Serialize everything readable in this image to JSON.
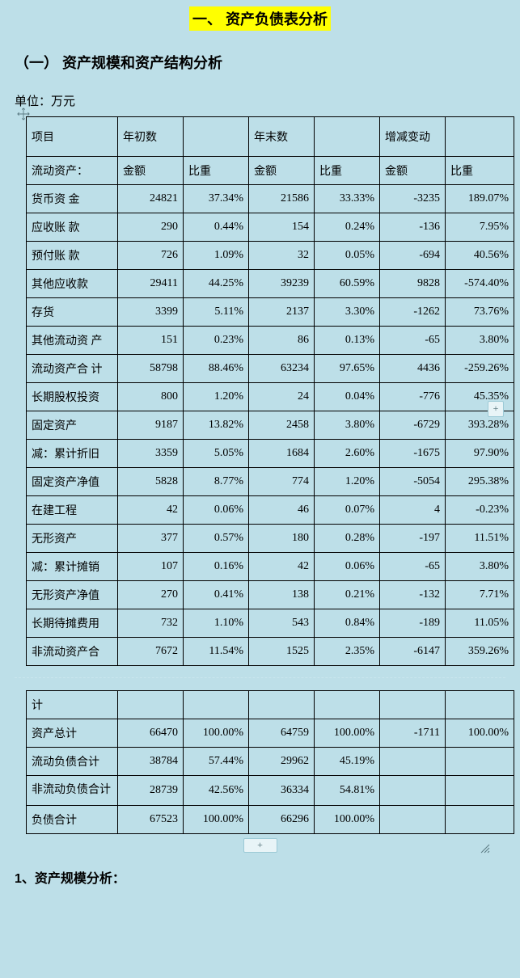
{
  "title": "一、  资产负债表分析",
  "subheading": "（一）  资产规模和资产结构分析",
  "unit": "单位：万元",
  "footer_heading": "1、资产规模分析：",
  "colors": {
    "page_bg": "#bddfe8",
    "highlight_bg": "#ffff00",
    "border": "#000000",
    "handle_border": "#9ccad6",
    "handle_bg": "#e8f4f7"
  },
  "table": {
    "header1": {
      "c0": "项目",
      "c1": "年初数",
      "c2": "",
      "c3": "年末数",
      "c4": "",
      "c5": "增减变动",
      "c6": ""
    },
    "header2": {
      "c0": "流动资产：",
      "c1": "金额",
      "c2": "比重",
      "c3": "金额",
      "c4": "比重",
      "c5": "金额",
      "c6": "比重"
    },
    "rows_a": [
      {
        "c0": "货币资 金",
        "c1": "24821",
        "c2": "37.34%",
        "c3": "21586",
        "c4": "33.33%",
        "c5": "-3235",
        "c6": "189.07%"
      },
      {
        "c0": "应收账 款",
        "c1": "290",
        "c2": "0.44%",
        "c3": "154",
        "c4": "0.24%",
        "c5": "-136",
        "c6": "7.95%"
      },
      {
        "c0": "预付账 款",
        "c1": "726",
        "c2": "1.09%",
        "c3": "32",
        "c4": "0.05%",
        "c5": "-694",
        "c6": "40.56%"
      },
      {
        "c0": "其他应收款",
        "c1": "29411",
        "c2": "44.25%",
        "c3": "39239",
        "c4": "60.59%",
        "c5": "9828",
        "c6": "-574.40%"
      },
      {
        "c0": "存货",
        "c1": "3399",
        "c2": "5.11%",
        "c3": "2137",
        "c4": "3.30%",
        "c5": "-1262",
        "c6": "73.76%"
      },
      {
        "c0": "其他流动资 产",
        "c1": "151",
        "c2": "0.23%",
        "c3": "86",
        "c4": "0.13%",
        "c5": "-65",
        "c6": "3.80%"
      },
      {
        "c0": "流动资产合 计",
        "c1": "58798",
        "c2": "88.46%",
        "c3": "63234",
        "c4": "97.65%",
        "c5": "4436",
        "c6": "-259.26%"
      },
      {
        "c0": "长期股权投资",
        "c1": "800",
        "c2": "1.20%",
        "c3": "24",
        "c4": "0.04%",
        "c5": "-776",
        "c6": "45.35%"
      },
      {
        "c0": "固定资产",
        "c1": "9187",
        "c2": "13.82%",
        "c3": "2458",
        "c4": "3.80%",
        "c5": "-6729",
        "c6": "393.28%"
      },
      {
        "c0": "减：累计折旧",
        "c1": "3359",
        "c2": "5.05%",
        "c3": "1684",
        "c4": "2.60%",
        "c5": "-1675",
        "c6": "97.90%"
      },
      {
        "c0": "固定资产净值",
        "c1": "5828",
        "c2": "8.77%",
        "c3": "774",
        "c4": "1.20%",
        "c5": "-5054",
        "c6": "295.38%"
      },
      {
        "c0": "在建工程",
        "c1": "42",
        "c2": "0.06%",
        "c3": "46",
        "c4": "0.07%",
        "c5": "4",
        "c6": "-0.23%"
      },
      {
        "c0": "无形资产",
        "c1": "377",
        "c2": "0.57%",
        "c3": "180",
        "c4": "0.28%",
        "c5": "-197",
        "c6": "11.51%"
      },
      {
        "c0": "减：累计摊销",
        "c1": "107",
        "c2": "0.16%",
        "c3": "42",
        "c4": "0.06%",
        "c5": "-65",
        "c6": "3.80%"
      },
      {
        "c0": "无形资产净值",
        "c1": "270",
        "c2": "0.41%",
        "c3": "138",
        "c4": "0.21%",
        "c5": "-132",
        "c6": "7.71%"
      },
      {
        "c0": "长期待摊费用",
        "c1": "732",
        "c2": "1.10%",
        "c3": "543",
        "c4": "0.84%",
        "c5": "-189",
        "c6": "11.05%"
      },
      {
        "c0": "非流动资产合",
        "c1": "7672",
        "c2": "11.54%",
        "c3": "1525",
        "c4": "2.35%",
        "c5": "-6147",
        "c6": "359.26%"
      }
    ],
    "rows_b": [
      {
        "c0": "计",
        "c1": "",
        "c2": "",
        "c3": "",
        "c4": "",
        "c5": "",
        "c6": ""
      },
      {
        "c0": "资产总计",
        "c1": "66470",
        "c2": "100.00%",
        "c3": "64759",
        "c4": "100.00%",
        "c5": "-1711",
        "c6": "100.00%"
      },
      {
        "c0": "流动负债合计",
        "c1": "38784",
        "c2": "57.44%",
        "c3": "29962",
        "c4": "45.19%",
        "c5": "",
        "c6": ""
      },
      {
        "c0": "非流动负债合计",
        "c1": "28739",
        "c2": "42.56%",
        "c3": "36334",
        "c4": "54.81%",
        "c5": "",
        "c6": "",
        "wrap": true
      },
      {
        "c0": "负债合计",
        "c1": "67523",
        "c2": "100.00%",
        "c3": "66296",
        "c4": "100.00%",
        "c5": "",
        "c6": ""
      }
    ]
  }
}
